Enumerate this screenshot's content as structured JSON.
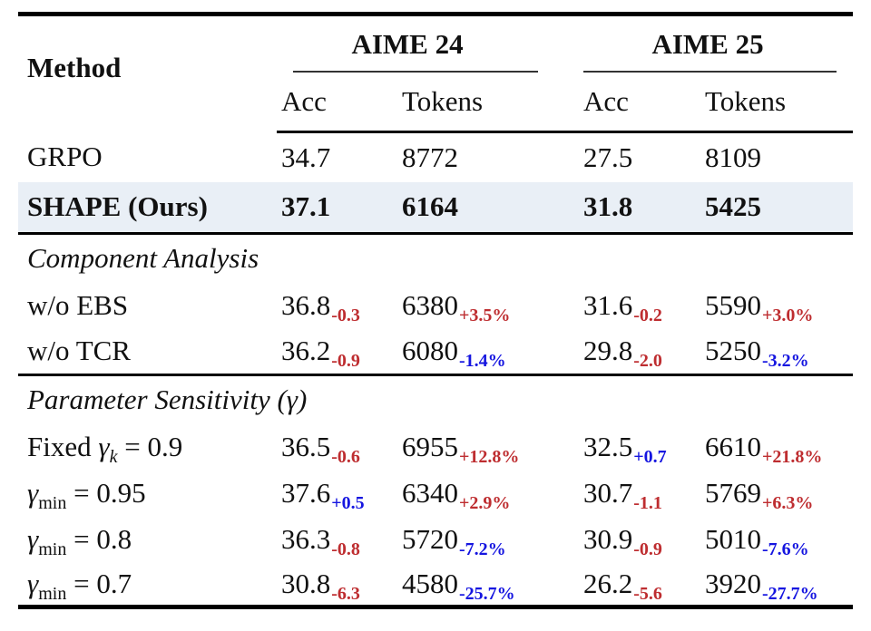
{
  "colors": {
    "red": "#be2d30",
    "blue": "#1515e0",
    "highlight": "#e9eff6",
    "rule": "#000000"
  },
  "header": {
    "method": "Method",
    "groups": [
      {
        "label": "AIME 24"
      },
      {
        "label": "AIME 25"
      }
    ],
    "subcols": [
      "Acc",
      "Tokens",
      "Acc",
      "Tokens"
    ]
  },
  "sections": [
    {
      "title": "Component Analysis"
    },
    {
      "title": "Parameter Sensitivity (γ)"
    }
  ],
  "rows": [
    {
      "m1": "GRPO",
      "c": [
        {
          "v": "34.7"
        },
        {
          "v": "8772"
        },
        {
          "v": "27.5"
        },
        {
          "v": "8109"
        }
      ]
    },
    {
      "m1": "SHAPE (Ours)",
      "c": [
        {
          "v": "37.1"
        },
        {
          "v": "6164"
        },
        {
          "v": "31.8"
        },
        {
          "v": "5425"
        }
      ]
    },
    {
      "m1": "w/o EBS",
      "c": [
        {
          "v": "36.8",
          "d": "-0.3",
          "dc": "delta red"
        },
        {
          "v": "6380",
          "d": "+3.5%",
          "dc": "delta red"
        },
        {
          "v": "31.6",
          "d": "-0.2",
          "dc": "delta red"
        },
        {
          "v": "5590",
          "d": "+3.0%",
          "dc": "delta red"
        }
      ]
    },
    {
      "m1": "w/o TCR",
      "c": [
        {
          "v": "36.2",
          "d": "-0.9",
          "dc": "delta red"
        },
        {
          "v": "6080",
          "d": "-1.4%",
          "dc": "delta blue"
        },
        {
          "v": "29.8",
          "d": "-2.0",
          "dc": "delta red"
        },
        {
          "v": "5250",
          "d": "-3.2%",
          "dc": "delta blue"
        }
      ]
    },
    {
      "m1": "Fixed ",
      "m2": "γ",
      "m3": "k",
      "m3c": "msub italic",
      "m4": " = 0.9",
      "c": [
        {
          "v": "36.5",
          "d": "-0.6",
          "dc": "delta red"
        },
        {
          "v": "6955",
          "d": "+12.8%",
          "dc": "delta red"
        },
        {
          "v": "32.5",
          "d": "+0.7",
          "dc": "delta blue"
        },
        {
          "v": "6610",
          "d": "+21.8%",
          "dc": "delta red"
        }
      ]
    },
    {
      "m2": "γ",
      "m3": "min",
      "m3c": "msub",
      "m4": " = 0.95",
      "c": [
        {
          "v": "37.6",
          "d": "+0.5",
          "dc": "delta blue"
        },
        {
          "v": "6340",
          "d": "+2.9%",
          "dc": "delta red"
        },
        {
          "v": "30.7",
          "d": "-1.1",
          "dc": "delta red"
        },
        {
          "v": "5769",
          "d": "+6.3%",
          "dc": "delta red"
        }
      ]
    },
    {
      "m2": "γ",
      "m3": "min",
      "m3c": "msub",
      "m4": " = 0.8",
      "c": [
        {
          "v": "36.3",
          "d": "-0.8",
          "dc": "delta red"
        },
        {
          "v": "5720",
          "d": "-7.2%",
          "dc": "delta blue"
        },
        {
          "v": "30.9",
          "d": "-0.9",
          "dc": "delta red"
        },
        {
          "v": "5010",
          "d": "-7.6%",
          "dc": "delta blue"
        }
      ]
    },
    {
      "m2": "γ",
      "m3": "min",
      "m3c": "msub",
      "m4": " = 0.7",
      "c": [
        {
          "v": "30.8",
          "d": "-6.3",
          "dc": "delta red"
        },
        {
          "v": "4580",
          "d": "-25.7%",
          "dc": "delta blue"
        },
        {
          "v": "26.2",
          "d": "-5.6",
          "dc": "delta red"
        },
        {
          "v": "3920",
          "d": "-27.7%",
          "dc": "delta blue"
        }
      ]
    }
  ]
}
